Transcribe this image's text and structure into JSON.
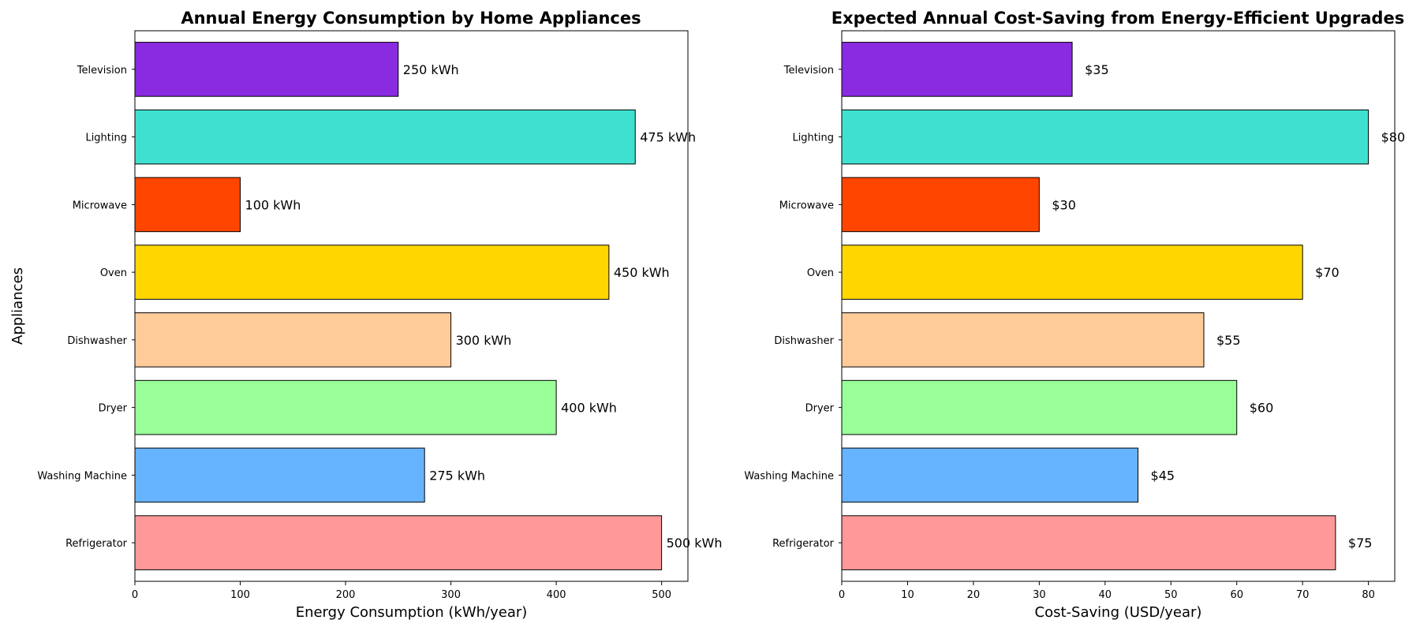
{
  "chart_data": [
    {
      "type": "bar",
      "orientation": "horizontal",
      "title": "Annual Energy Consumption by Home Appliances",
      "xlabel": "Energy Consumption (kWh/year)",
      "ylabel": "Appliances",
      "categories": [
        "Refrigerator",
        "Washing Machine",
        "Dryer",
        "Dishwasher",
        "Oven",
        "Microwave",
        "Lighting",
        "Television"
      ],
      "values": [
        500,
        275,
        400,
        300,
        450,
        100,
        475,
        250
      ],
      "data_labels": [
        "500 kWh",
        "275 kWh",
        "400 kWh",
        "300 kWh",
        "450 kWh",
        "100 kWh",
        "475 kWh",
        "250 kWh"
      ],
      "colors": [
        "#ff9999",
        "#66b3ff",
        "#99ff99",
        "#ffcc99",
        "#ffd700",
        "#ff4500",
        "#40e0d0",
        "#8a2be2"
      ],
      "xlim": [
        0,
        525
      ],
      "xticks": [
        0,
        100,
        200,
        300,
        400,
        500
      ],
      "xtick_labels": [
        "0",
        "100",
        "200",
        "300",
        "400",
        "500"
      ],
      "grid": false
    },
    {
      "type": "bar",
      "orientation": "horizontal",
      "title": "Expected Annual Cost-Saving from Energy-Efficient Upgrades",
      "xlabel": "Cost-Saving (USD/year)",
      "ylabel": "",
      "categories": [
        "Refrigerator",
        "Washing Machine",
        "Dryer",
        "Dishwasher",
        "Oven",
        "Microwave",
        "Lighting",
        "Television"
      ],
      "values": [
        75,
        45,
        60,
        55,
        70,
        30,
        80,
        35
      ],
      "data_labels": [
        "$75",
        "$45",
        "$60",
        "$55",
        "$70",
        "$30",
        "$80",
        "$35"
      ],
      "colors": [
        "#ff9999",
        "#66b3ff",
        "#99ff99",
        "#ffcc99",
        "#ffd700",
        "#ff4500",
        "#40e0d0",
        "#8a2be2"
      ],
      "xlim": [
        0,
        84
      ],
      "xticks": [
        0,
        10,
        20,
        30,
        40,
        50,
        60,
        70,
        80
      ],
      "xtick_labels": [
        "0",
        "10",
        "20",
        "30",
        "40",
        "50",
        "60",
        "70",
        "80"
      ],
      "grid": false
    }
  ]
}
